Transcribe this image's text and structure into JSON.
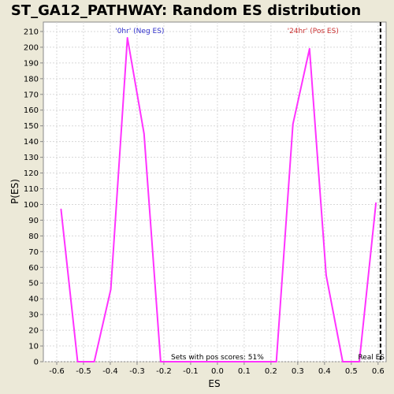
{
  "chart_data": {
    "type": "line",
    "title": "ST_GA12_PATHWAY: Random ES distribution",
    "xlabel": "ES",
    "ylabel": "P(ES)",
    "xlim": [
      -0.65,
      0.63
    ],
    "ylim": [
      0,
      216
    ],
    "x_ticks": [
      -0.6,
      -0.5,
      -0.4,
      -0.3,
      -0.2,
      -0.1,
      0.0,
      0.1,
      0.2,
      0.3,
      0.4,
      0.5,
      0.6
    ],
    "x_tick_labels": [
      "-0.6",
      "-0.5",
      "-0.4",
      "-0.3",
      "-0.2",
      "-0.1",
      "0.0",
      "0.1",
      "0.2",
      "0.3",
      "0.4",
      "0.5",
      "0.6"
    ],
    "y_ticks": [
      0,
      10,
      20,
      30,
      40,
      50,
      60,
      70,
      80,
      90,
      100,
      110,
      120,
      130,
      140,
      150,
      160,
      170,
      180,
      190,
      200,
      210
    ],
    "grid": true,
    "series": [
      {
        "color": "#ff33ff",
        "x": [
          -0.584,
          -0.522,
          -0.46,
          -0.398,
          -0.336,
          -0.274,
          -0.212,
          -0.15,
          0.22,
          0.282,
          0.344,
          0.406,
          0.468,
          0.53,
          0.592
        ],
        "values": [
          97,
          0,
          0,
          46,
          206,
          145,
          0,
          0,
          0,
          151,
          199,
          55,
          0,
          0,
          101
        ]
      }
    ],
    "annotations": {
      "neg_label": "'0hr' (Neg ES)",
      "neg_color": "#3333cc",
      "pos_label": "'24hr' (Pos ES)",
      "pos_color": "#cc3333",
      "sets_text": "Sets with pos scores: 51%",
      "real_es_label": "Real ES",
      "real_es_value": 0.609
    }
  }
}
